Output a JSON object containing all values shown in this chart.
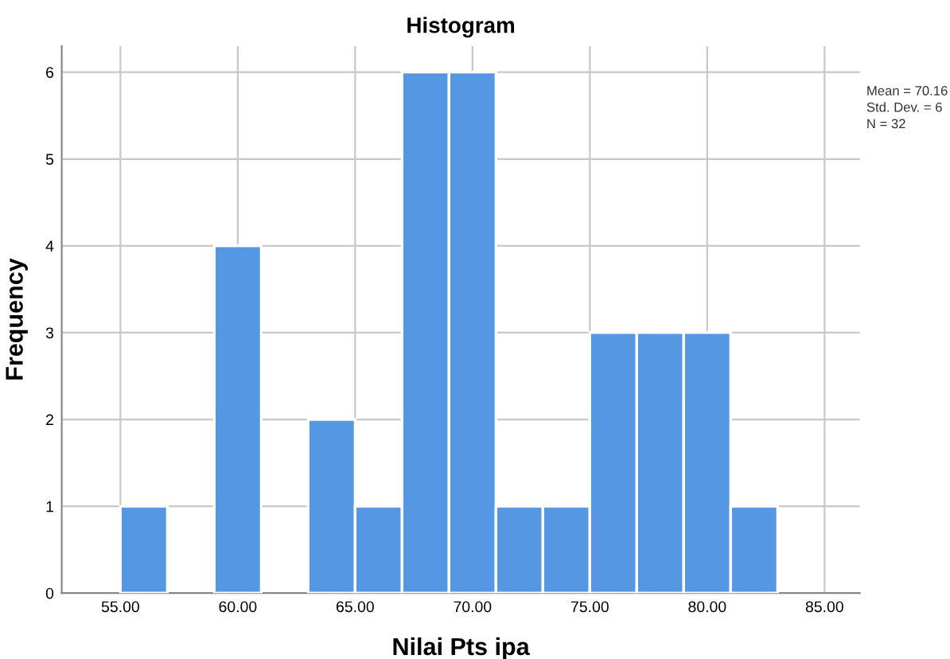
{
  "chart_data": {
    "type": "histogram",
    "title": "Histogram",
    "xlabel": "Nilai Pts ipa",
    "ylabel": "Frequency",
    "bins": [
      55,
      57,
      59,
      61,
      63,
      65,
      67,
      69,
      71,
      73,
      75,
      77,
      79,
      81,
      83
    ],
    "values": [
      1,
      0,
      4,
      0,
      2,
      1,
      6,
      6,
      1,
      1,
      3,
      3,
      3,
      1
    ],
    "color": "#5597e3",
    "xlim": [
      52.5,
      86.5
    ],
    "xticks": [
      {
        "value": 55,
        "label": "55.00"
      },
      {
        "value": 60,
        "label": "60.00"
      },
      {
        "value": 65,
        "label": "65.00"
      },
      {
        "value": 70,
        "label": "70.00"
      },
      {
        "value": 75,
        "label": "75.00"
      },
      {
        "value": 80,
        "label": "80.00"
      },
      {
        "value": 85,
        "label": "85.00"
      }
    ],
    "ylim": [
      0,
      6.3
    ],
    "yticks": [
      0,
      1,
      2,
      3,
      4,
      5,
      6
    ],
    "grid": true,
    "annotations": [
      "Mean = 70.16",
      "Std. Dev. = 6",
      "N = 32"
    ]
  }
}
